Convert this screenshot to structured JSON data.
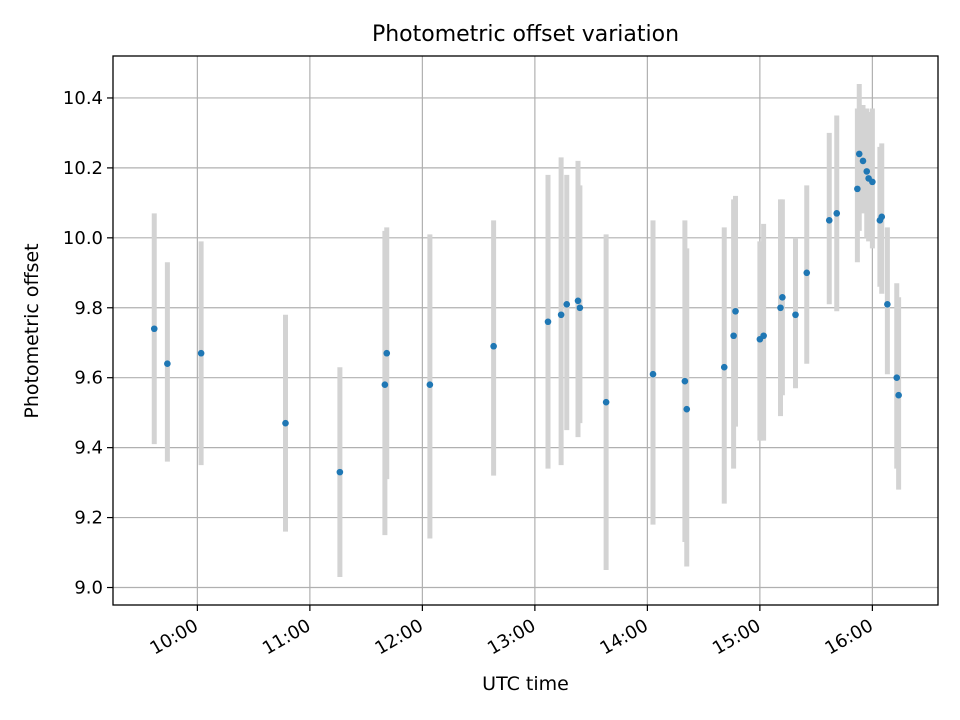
{
  "chart_data": {
    "type": "scatter",
    "title": "Photometric offset variation",
    "xlabel": "UTC time",
    "ylabel": "Photometric offset",
    "xlim": [
      "09:15",
      "16:35"
    ],
    "ylim": [
      8.95,
      10.52
    ],
    "grid": true,
    "x_ticks": [
      "10:00",
      "11:00",
      "12:00",
      "13:00",
      "14:00",
      "15:00",
      "16:00"
    ],
    "y_ticks": [
      "9.0",
      "9.2",
      "9.4",
      "9.6",
      "9.8",
      "10.0",
      "10.2",
      "10.4"
    ],
    "series": [
      {
        "marker_color": "#1f77b4",
        "errorbar_color": "#d3d3d3",
        "points": [
          {
            "x": "09:37",
            "y": 9.74,
            "ylow": 9.41,
            "yhigh": 10.07
          },
          {
            "x": "09:44",
            "y": 9.64,
            "ylow": 9.36,
            "yhigh": 9.93
          },
          {
            "x": "10:02",
            "y": 9.67,
            "ylow": 9.35,
            "yhigh": 9.99
          },
          {
            "x": "10:47",
            "y": 9.47,
            "ylow": 9.16,
            "yhigh": 9.78
          },
          {
            "x": "11:16",
            "y": 9.33,
            "ylow": 9.03,
            "yhigh": 9.63
          },
          {
            "x": "11:40",
            "y": 9.58,
            "ylow": 9.15,
            "yhigh": 10.02
          },
          {
            "x": "11:41",
            "y": 9.67,
            "ylow": 9.31,
            "yhigh": 10.03
          },
          {
            "x": "12:04",
            "y": 9.58,
            "ylow": 9.14,
            "yhigh": 10.01
          },
          {
            "x": "12:38",
            "y": 9.69,
            "ylow": 9.32,
            "yhigh": 10.05
          },
          {
            "x": "13:07",
            "y": 9.76,
            "ylow": 9.34,
            "yhigh": 10.18
          },
          {
            "x": "13:14",
            "y": 9.78,
            "ylow": 9.35,
            "yhigh": 10.23
          },
          {
            "x": "13:17",
            "y": 9.81,
            "ylow": 9.45,
            "yhigh": 10.18
          },
          {
            "x": "13:23",
            "y": 9.82,
            "ylow": 9.43,
            "yhigh": 10.22
          },
          {
            "x": "13:24",
            "y": 9.8,
            "ylow": 9.47,
            "yhigh": 10.15
          },
          {
            "x": "13:38",
            "y": 9.53,
            "ylow": 9.05,
            "yhigh": 10.01
          },
          {
            "x": "14:03",
            "y": 9.61,
            "ylow": 9.18,
            "yhigh": 10.05
          },
          {
            "x": "14:20",
            "y": 9.59,
            "ylow": 9.13,
            "yhigh": 10.05
          },
          {
            "x": "14:21",
            "y": 9.51,
            "ylow": 9.06,
            "yhigh": 9.97
          },
          {
            "x": "14:41",
            "y": 9.63,
            "ylow": 9.24,
            "yhigh": 10.03
          },
          {
            "x": "14:46",
            "y": 9.72,
            "ylow": 9.34,
            "yhigh": 10.11
          },
          {
            "x": "14:47",
            "y": 9.79,
            "ylow": 9.46,
            "yhigh": 10.12
          },
          {
            "x": "15:00",
            "y": 9.71,
            "ylow": 9.42,
            "yhigh": 9.99
          },
          {
            "x": "15:02",
            "y": 9.72,
            "ylow": 9.42,
            "yhigh": 10.04
          },
          {
            "x": "15:11",
            "y": 9.8,
            "ylow": 9.49,
            "yhigh": 10.11
          },
          {
            "x": "15:12",
            "y": 9.83,
            "ylow": 9.55,
            "yhigh": 10.11
          },
          {
            "x": "15:19",
            "y": 9.78,
            "ylow": 9.57,
            "yhigh": 10.0
          },
          {
            "x": "15:25",
            "y": 9.9,
            "ylow": 9.64,
            "yhigh": 10.15
          },
          {
            "x": "15:37",
            "y": 10.05,
            "ylow": 9.81,
            "yhigh": 10.3
          },
          {
            "x": "15:41",
            "y": 10.07,
            "ylow": 9.79,
            "yhigh": 10.35
          },
          {
            "x": "15:52",
            "y": 10.14,
            "ylow": 9.93,
            "yhigh": 10.37
          },
          {
            "x": "15:53",
            "y": 10.24,
            "ylow": 10.02,
            "yhigh": 10.44
          },
          {
            "x": "15:55",
            "y": 10.22,
            "ylow": 10.07,
            "yhigh": 10.38
          },
          {
            "x": "15:57",
            "y": 10.19,
            "ylow": 10.0,
            "yhigh": 10.37
          },
          {
            "x": "15:58",
            "y": 10.17,
            "ylow": 9.99,
            "yhigh": 10.36
          },
          {
            "x": "16:00",
            "y": 10.16,
            "ylow": 9.97,
            "yhigh": 10.37
          },
          {
            "x": "16:04",
            "y": 10.05,
            "ylow": 9.86,
            "yhigh": 10.26
          },
          {
            "x": "16:05",
            "y": 10.06,
            "ylow": 9.84,
            "yhigh": 10.27
          },
          {
            "x": "16:08",
            "y": 9.81,
            "ylow": 9.61,
            "yhigh": 10.03
          },
          {
            "x": "16:13",
            "y": 9.6,
            "ylow": 9.34,
            "yhigh": 9.87
          },
          {
            "x": "16:14",
            "y": 9.55,
            "ylow": 9.28,
            "yhigh": 9.83
          }
        ]
      }
    ]
  }
}
